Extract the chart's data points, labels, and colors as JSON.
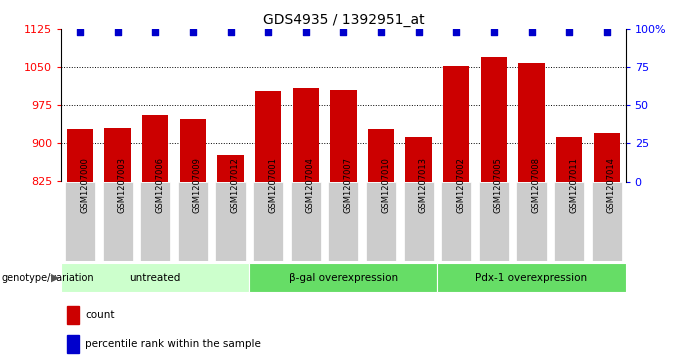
{
  "title": "GDS4935 / 1392951_at",
  "samples": [
    "GSM1207000",
    "GSM1207003",
    "GSM1207006",
    "GSM1207009",
    "GSM1207012",
    "GSM1207001",
    "GSM1207004",
    "GSM1207007",
    "GSM1207010",
    "GSM1207013",
    "GSM1207002",
    "GSM1207005",
    "GSM1207008",
    "GSM1207011",
    "GSM1207014"
  ],
  "counts": [
    928,
    930,
    955,
    948,
    878,
    1003,
    1008,
    1005,
    928,
    912,
    1052,
    1070,
    1058,
    912,
    920
  ],
  "percentile_ranks": [
    98,
    98,
    98,
    98,
    98,
    98,
    98,
    98,
    98,
    98,
    98,
    98,
    98,
    98,
    98
  ],
  "groups": [
    {
      "label": "untreated",
      "start": 0,
      "end": 5,
      "color": "#ccffcc"
    },
    {
      "label": "β-gal overexpression",
      "start": 5,
      "end": 10,
      "color": "#66dd66"
    },
    {
      "label": "Pdx-1 overexpression",
      "start": 10,
      "end": 15,
      "color": "#66dd66"
    }
  ],
  "ylim_left": [
    825,
    1125
  ],
  "ylim_right": [
    0,
    100
  ],
  "yticks_left": [
    825,
    900,
    975,
    1050,
    1125
  ],
  "yticks_right": [
    0,
    25,
    50,
    75,
    100
  ],
  "bar_color": "#cc0000",
  "scatter_color": "#0000cc",
  "bar_width": 0.7,
  "genotype_label": "genotype/variation",
  "legend_count_label": "count",
  "legend_percentile_label": "percentile rank within the sample",
  "xticklabel_bg": "#cccccc",
  "group_untreated_color": "#ccffcc",
  "group_other_color": "#66dd66",
  "plot_bg": "#ffffff"
}
